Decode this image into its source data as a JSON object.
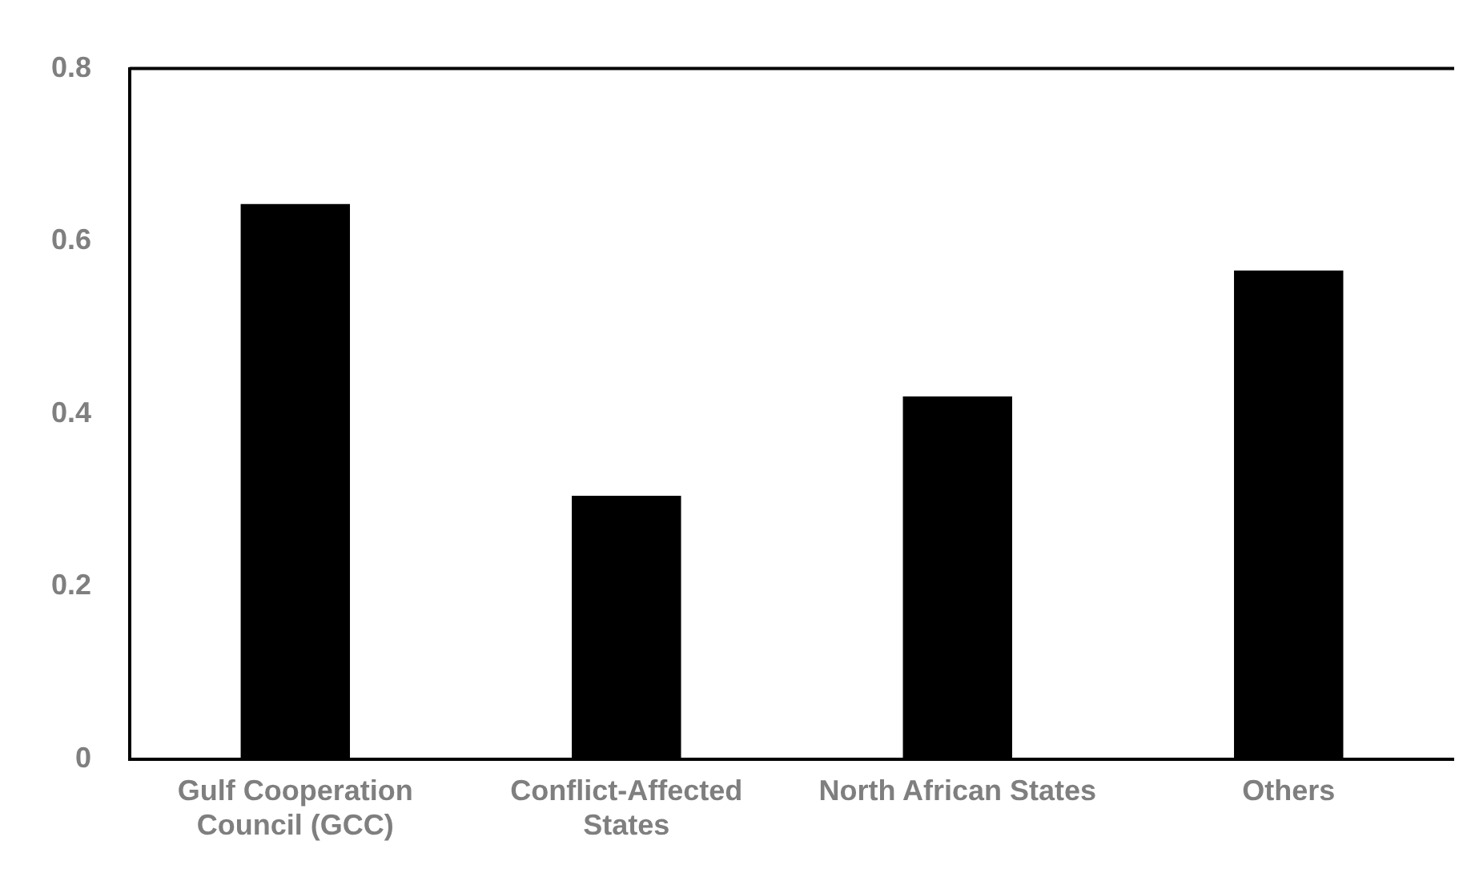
{
  "chart_data": {
    "type": "bar",
    "categories": [
      "Gulf Cooperation Council (GCC)",
      "Conflict-Affected States",
      "North African States",
      "Others"
    ],
    "values": [
      0.643,
      0.305,
      0.42,
      0.566
    ],
    "color": "#000000",
    "ylim": [
      0,
      0.8
    ],
    "yticks": [
      0,
      0.2,
      0.4,
      0.6,
      0.8
    ],
    "grid": false,
    "legend": false
  }
}
